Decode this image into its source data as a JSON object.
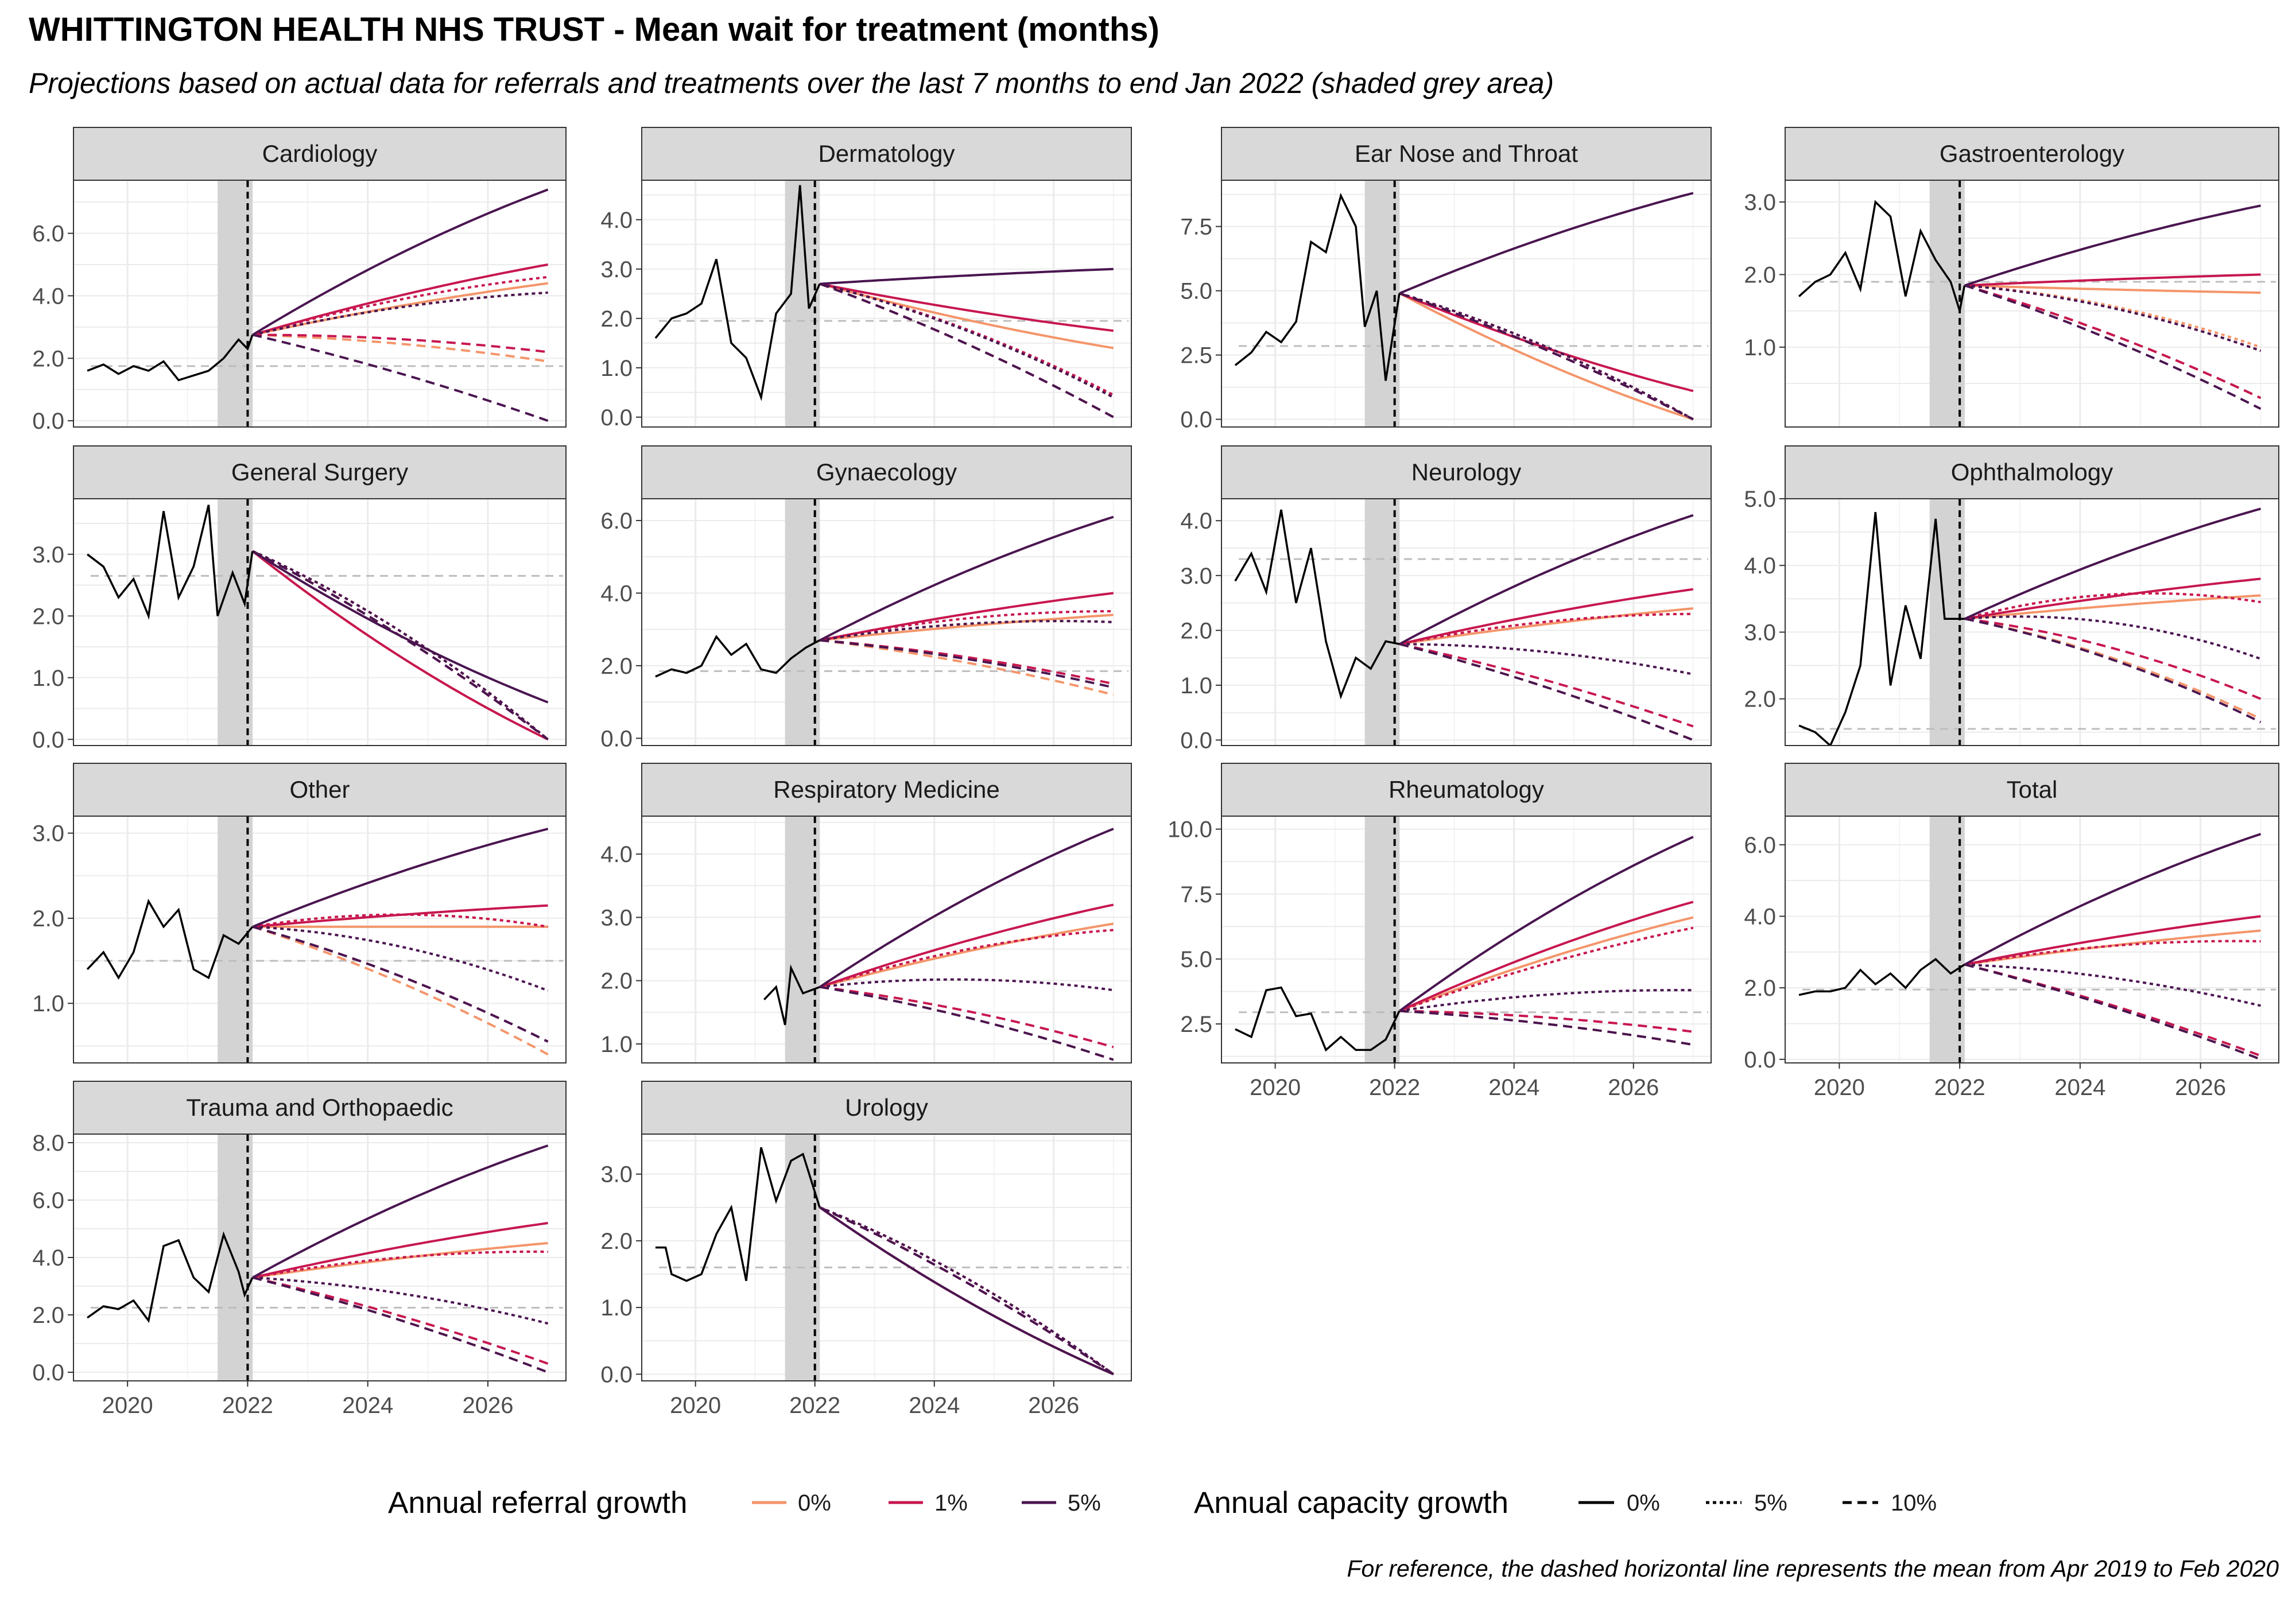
{
  "title": "WHITTINGTON HEALTH NHS TRUST - Mean wait for treatment (months)",
  "subtitle": "Projections based on actual data for referrals and treatments over the last 7 months to end Jan 2022 (shaded grey area)",
  "caption": "For reference, the dashed horizontal line represents the mean from Apr 2019 to Feb 2020",
  "legend": {
    "referral_title": "Annual referral growth",
    "referral_items": [
      {
        "label": "0%",
        "color": "#f4956a"
      },
      {
        "label": "1%",
        "color": "#c7174f"
      },
      {
        "label": "5%",
        "color": "#4a1550"
      }
    ],
    "capacity_title": "Annual capacity growth",
    "capacity_items": [
      {
        "label": "0%",
        "dash": "solid"
      },
      {
        "label": "5%",
        "dash": "dotted"
      },
      {
        "label": "10%",
        "dash": "dashed"
      }
    ]
  },
  "chart_data": {
    "type": "line",
    "facet_layout": "4 columns, free y scales",
    "x_ticks": [
      "2020",
      "2022",
      "2024",
      "2026"
    ],
    "xlim": [
      2019.1,
      2027.3
    ],
    "shade_period": [
      "2021-07",
      "2022-01"
    ],
    "projection_start": "2022-02",
    "projection_end": "2027-01",
    "series_scenarios": {
      "referral_growth": [
        "0%",
        "1%",
        "5%"
      ],
      "capacity_growth": [
        "0%",
        "5%",
        "10%"
      ]
    },
    "panels": [
      {
        "name": "Cardiology",
        "ylim": [
          -0.2,
          7.7
        ],
        "y_ticks": [
          "0.0",
          "2.0",
          "4.0",
          "6.0"
        ],
        "reference_mean": 1.75,
        "actual": [
          [
            2019.33,
            1.6
          ],
          [
            2019.6,
            1.8
          ],
          [
            2019.85,
            1.5
          ],
          [
            2020.1,
            1.75
          ],
          [
            2020.35,
            1.6
          ],
          [
            2020.6,
            1.9
          ],
          [
            2020.85,
            1.3
          ],
          [
            2021.1,
            1.45
          ],
          [
            2021.35,
            1.6
          ],
          [
            2021.6,
            2.0
          ],
          [
            2021.85,
            2.6
          ],
          [
            2022.0,
            2.3
          ],
          [
            2022.08,
            2.75
          ]
        ],
        "end": {
          "r0": [
            4.4,
            4.1,
            1.9
          ],
          "r1": [
            5.0,
            4.6,
            2.2
          ],
          "r5": [
            7.4,
            4.1,
            0.0
          ]
        }
      },
      {
        "name": "Dermatology",
        "ylim": [
          -0.2,
          4.8
        ],
        "y_ticks": [
          "0.0",
          "1.0",
          "2.0",
          "3.0",
          "4.0"
        ],
        "reference_mean": 1.95,
        "actual": [
          [
            2019.33,
            1.6
          ],
          [
            2019.6,
            2.0
          ],
          [
            2019.85,
            2.1
          ],
          [
            2020.1,
            2.3
          ],
          [
            2020.35,
            3.2
          ],
          [
            2020.6,
            1.5
          ],
          [
            2020.85,
            1.2
          ],
          [
            2021.1,
            0.4
          ],
          [
            2021.35,
            2.1
          ],
          [
            2021.6,
            2.5
          ],
          [
            2021.75,
            4.7
          ],
          [
            2021.9,
            2.2
          ],
          [
            2022.08,
            2.7
          ]
        ],
        "end": {
          "r0": [
            1.4,
            0.4,
            0.0
          ],
          "r1": [
            1.75,
            0.45,
            0.0
          ],
          "r5": [
            3.0,
            0.4,
            0.0
          ]
        }
      },
      {
        "name": "Ear Nose and Throat",
        "ylim": [
          -0.3,
          9.3
        ],
        "y_ticks": [
          "0.0",
          "2.5",
          "5.0",
          "7.5"
        ],
        "reference_mean": 2.85,
        "actual": [
          [
            2019.33,
            2.1
          ],
          [
            2019.6,
            2.6
          ],
          [
            2019.85,
            3.4
          ],
          [
            2020.1,
            3.0
          ],
          [
            2020.35,
            3.8
          ],
          [
            2020.6,
            6.9
          ],
          [
            2020.85,
            6.5
          ],
          [
            2021.1,
            8.7
          ],
          [
            2021.35,
            7.5
          ],
          [
            2021.5,
            3.6
          ],
          [
            2021.7,
            5.0
          ],
          [
            2021.85,
            1.5
          ],
          [
            2022.08,
            4.9
          ]
        ],
        "end": {
          "r0": [
            0.0,
            0.0,
            0.0
          ],
          "r1": [
            1.1,
            0.0,
            0.0
          ],
          "r5": [
            8.8,
            0.0,
            0.0
          ]
        }
      },
      {
        "name": "Gastroenterology",
        "ylim": [
          -0.1,
          3.3
        ],
        "y_ticks": [
          "1.0",
          "2.0",
          "3.0"
        ],
        "reference_mean": 1.9,
        "actual": [
          [
            2019.33,
            1.7
          ],
          [
            2019.6,
            1.9
          ],
          [
            2019.85,
            2.0
          ],
          [
            2020.1,
            2.3
          ],
          [
            2020.35,
            1.8
          ],
          [
            2020.6,
            3.0
          ],
          [
            2020.85,
            2.8
          ],
          [
            2021.1,
            1.7
          ],
          [
            2021.35,
            2.6
          ],
          [
            2021.6,
            2.2
          ],
          [
            2021.85,
            1.9
          ],
          [
            2022.0,
            1.5
          ],
          [
            2022.08,
            1.85
          ]
        ],
        "end": {
          "r0": [
            1.75,
            1.0,
            0.3
          ],
          "r1": [
            2.0,
            0.95,
            0.3
          ],
          "r5": [
            2.95,
            0.95,
            0.15
          ]
        }
      },
      {
        "name": "General Surgery",
        "ylim": [
          -0.1,
          3.9
        ],
        "y_ticks": [
          "0.0",
          "1.0",
          "2.0",
          "3.0"
        ],
        "reference_mean": 2.65,
        "actual": [
          [
            2019.33,
            3.0
          ],
          [
            2019.6,
            2.8
          ],
          [
            2019.85,
            2.3
          ],
          [
            2020.1,
            2.6
          ],
          [
            2020.35,
            2.0
          ],
          [
            2020.6,
            3.7
          ],
          [
            2020.85,
            2.3
          ],
          [
            2021.1,
            2.8
          ],
          [
            2021.35,
            3.8
          ],
          [
            2021.5,
            2.0
          ],
          [
            2021.75,
            2.7
          ],
          [
            2021.95,
            2.2
          ],
          [
            2022.08,
            3.05
          ]
        ],
        "end": {
          "r0": [
            0.0,
            0.0,
            0.0
          ],
          "r1": [
            0.0,
            0.0,
            0.0
          ],
          "r5": [
            0.6,
            0.0,
            0.0
          ]
        }
      },
      {
        "name": "Gynaecology",
        "ylim": [
          -0.2,
          6.6
        ],
        "y_ticks": [
          "0.0",
          "2.0",
          "4.0",
          "6.0"
        ],
        "reference_mean": 1.85,
        "actual": [
          [
            2019.33,
            1.7
          ],
          [
            2019.6,
            1.9
          ],
          [
            2019.85,
            1.8
          ],
          [
            2020.1,
            2.0
          ],
          [
            2020.35,
            2.8
          ],
          [
            2020.6,
            2.3
          ],
          [
            2020.85,
            2.6
          ],
          [
            2021.1,
            1.9
          ],
          [
            2021.35,
            1.8
          ],
          [
            2021.6,
            2.2
          ],
          [
            2021.85,
            2.5
          ],
          [
            2022.08,
            2.7
          ]
        ],
        "end": {
          "r0": [
            3.4,
            3.2,
            1.2
          ],
          "r1": [
            4.0,
            3.5,
            1.5
          ],
          "r5": [
            6.1,
            3.2,
            1.4
          ]
        }
      },
      {
        "name": "Neurology",
        "ylim": [
          -0.1,
          4.4
        ],
        "y_ticks": [
          "0.0",
          "1.0",
          "2.0",
          "3.0",
          "4.0"
        ],
        "reference_mean": 3.3,
        "actual": [
          [
            2019.33,
            2.9
          ],
          [
            2019.6,
            3.4
          ],
          [
            2019.85,
            2.7
          ],
          [
            2020.1,
            4.2
          ],
          [
            2020.35,
            2.5
          ],
          [
            2020.6,
            3.5
          ],
          [
            2020.85,
            1.8
          ],
          [
            2021.1,
            0.8
          ],
          [
            2021.35,
            1.5
          ],
          [
            2021.6,
            1.3
          ],
          [
            2021.85,
            1.8
          ],
          [
            2022.08,
            1.75
          ]
        ],
        "end": {
          "r0": [
            2.4,
            2.3,
            0.0
          ],
          "r1": [
            2.75,
            2.3,
            0.25
          ],
          "r5": [
            4.1,
            1.2,
            0.0
          ]
        }
      },
      {
        "name": "Ophthalmology",
        "ylim": [
          1.3,
          5.0
        ],
        "y_ticks": [
          "2.0",
          "3.0",
          "4.0",
          "5.0"
        ],
        "reference_mean": 1.55,
        "actual": [
          [
            2019.33,
            1.6
          ],
          [
            2019.6,
            1.5
          ],
          [
            2019.85,
            1.3
          ],
          [
            2020.1,
            1.8
          ],
          [
            2020.35,
            2.5
          ],
          [
            2020.6,
            4.8
          ],
          [
            2020.85,
            2.2
          ],
          [
            2021.1,
            3.4
          ],
          [
            2021.35,
            2.6
          ],
          [
            2021.6,
            4.7
          ],
          [
            2021.75,
            3.2
          ],
          [
            2022.08,
            3.2
          ]
        ],
        "end": {
          "r0": [
            3.55,
            3.45,
            1.7
          ],
          "r1": [
            3.8,
            3.45,
            2.0
          ],
          "r5": [
            4.85,
            2.6,
            1.65
          ]
        }
      },
      {
        "name": "Other",
        "ylim": [
          0.3,
          3.2
        ],
        "y_ticks": [
          "1.0",
          "2.0",
          "3.0"
        ],
        "reference_mean": 1.5,
        "actual": [
          [
            2019.33,
            1.4
          ],
          [
            2019.6,
            1.6
          ],
          [
            2019.85,
            1.3
          ],
          [
            2020.1,
            1.6
          ],
          [
            2020.35,
            2.2
          ],
          [
            2020.6,
            1.9
          ],
          [
            2020.85,
            2.1
          ],
          [
            2021.1,
            1.4
          ],
          [
            2021.35,
            1.3
          ],
          [
            2021.6,
            1.8
          ],
          [
            2021.85,
            1.7
          ],
          [
            2022.08,
            1.9
          ]
        ],
        "end": {
          "r0": [
            1.9,
            1.9,
            0.4
          ],
          "r1": [
            2.15,
            1.9,
            0.55
          ],
          "r5": [
            3.05,
            1.15,
            0.55
          ]
        }
      },
      {
        "name": "Respiratory Medicine",
        "ylim": [
          0.7,
          4.6
        ],
        "y_ticks": [
          "1.0",
          "2.0",
          "3.0",
          "4.0"
        ],
        "reference_mean": null,
        "actual": [
          [
            2021.15,
            1.7
          ],
          [
            2021.35,
            1.9
          ],
          [
            2021.5,
            1.3
          ],
          [
            2021.6,
            2.2
          ],
          [
            2021.8,
            1.8
          ],
          [
            2022.08,
            1.9
          ]
        ],
        "end": {
          "r0": [
            2.9,
            2.8,
            0.75
          ],
          "r1": [
            3.2,
            2.8,
            0.95
          ],
          "r5": [
            4.4,
            1.85,
            0.75
          ]
        }
      },
      {
        "name": "Rheumatology",
        "ylim": [
          1.0,
          10.5
        ],
        "y_ticks": [
          "2.5",
          "5.0",
          "7.5",
          "10.0"
        ],
        "reference_mean": 2.95,
        "actual": [
          [
            2019.33,
            2.3
          ],
          [
            2019.6,
            2.0
          ],
          [
            2019.85,
            3.8
          ],
          [
            2020.1,
            3.9
          ],
          [
            2020.35,
            2.8
          ],
          [
            2020.6,
            2.9
          ],
          [
            2020.85,
            1.5
          ],
          [
            2021.1,
            2.0
          ],
          [
            2021.35,
            1.5
          ],
          [
            2021.6,
            1.5
          ],
          [
            2021.85,
            1.9
          ],
          [
            2022.08,
            3.0
          ]
        ],
        "end": {
          "r0": [
            6.6,
            6.2,
            1.7
          ],
          "r1": [
            7.2,
            6.2,
            2.2
          ],
          "r5": [
            9.7,
            3.8,
            1.7
          ]
        }
      },
      {
        "name": "Total",
        "ylim": [
          -0.1,
          6.8
        ],
        "y_ticks": [
          "0.0",
          "2.0",
          "4.0",
          "6.0"
        ],
        "reference_mean": 1.95,
        "actual": [
          [
            2019.33,
            1.8
          ],
          [
            2019.6,
            1.9
          ],
          [
            2019.85,
            1.9
          ],
          [
            2020.1,
            2.0
          ],
          [
            2020.35,
            2.5
          ],
          [
            2020.6,
            2.1
          ],
          [
            2020.85,
            2.4
          ],
          [
            2021.1,
            2.0
          ],
          [
            2021.35,
            2.5
          ],
          [
            2021.6,
            2.8
          ],
          [
            2021.85,
            2.4
          ],
          [
            2022.08,
            2.65
          ]
        ],
        "end": {
          "r0": [
            3.6,
            3.3,
            0.0
          ],
          "r1": [
            4.0,
            3.3,
            0.1
          ],
          "r5": [
            6.3,
            1.5,
            0.0
          ]
        }
      },
      {
        "name": "Trauma and Orthopaedic",
        "ylim": [
          -0.3,
          8.3
        ],
        "y_ticks": [
          "0.0",
          "2.0",
          "4.0",
          "6.0",
          "8.0"
        ],
        "reference_mean": 2.25,
        "actual": [
          [
            2019.33,
            1.9
          ],
          [
            2019.6,
            2.3
          ],
          [
            2019.85,
            2.2
          ],
          [
            2020.1,
            2.5
          ],
          [
            2020.35,
            1.8
          ],
          [
            2020.6,
            4.4
          ],
          [
            2020.85,
            4.6
          ],
          [
            2021.1,
            3.3
          ],
          [
            2021.35,
            2.8
          ],
          [
            2021.6,
            4.8
          ],
          [
            2021.85,
            3.5
          ],
          [
            2021.95,
            2.7
          ],
          [
            2022.08,
            3.3
          ]
        ],
        "end": {
          "r0": [
            4.5,
            4.2,
            0.0
          ],
          "r1": [
            5.2,
            4.2,
            0.3
          ],
          "r5": [
            7.9,
            1.7,
            0.0
          ]
        }
      },
      {
        "name": "Urology",
        "ylim": [
          -0.1,
          3.6
        ],
        "y_ticks": [
          "0.0",
          "1.0",
          "2.0",
          "3.0"
        ],
        "reference_mean": 1.6,
        "actual": [
          [
            2019.33,
            1.9
          ],
          [
            2019.5,
            1.9
          ],
          [
            2019.6,
            1.5
          ],
          [
            2019.85,
            1.4
          ],
          [
            2020.1,
            1.5
          ],
          [
            2020.35,
            2.1
          ],
          [
            2020.6,
            2.5
          ],
          [
            2020.85,
            1.4
          ],
          [
            2021.1,
            3.4
          ],
          [
            2021.35,
            2.6
          ],
          [
            2021.6,
            3.2
          ],
          [
            2021.8,
            3.3
          ],
          [
            2022.08,
            2.5
          ]
        ],
        "end": {
          "r0": [
            0.0,
            0.0,
            0.0
          ],
          "r1": [
            0.0,
            0.0,
            0.0
          ],
          "r5": [
            0.0,
            0.0,
            0.0
          ]
        }
      }
    ]
  }
}
